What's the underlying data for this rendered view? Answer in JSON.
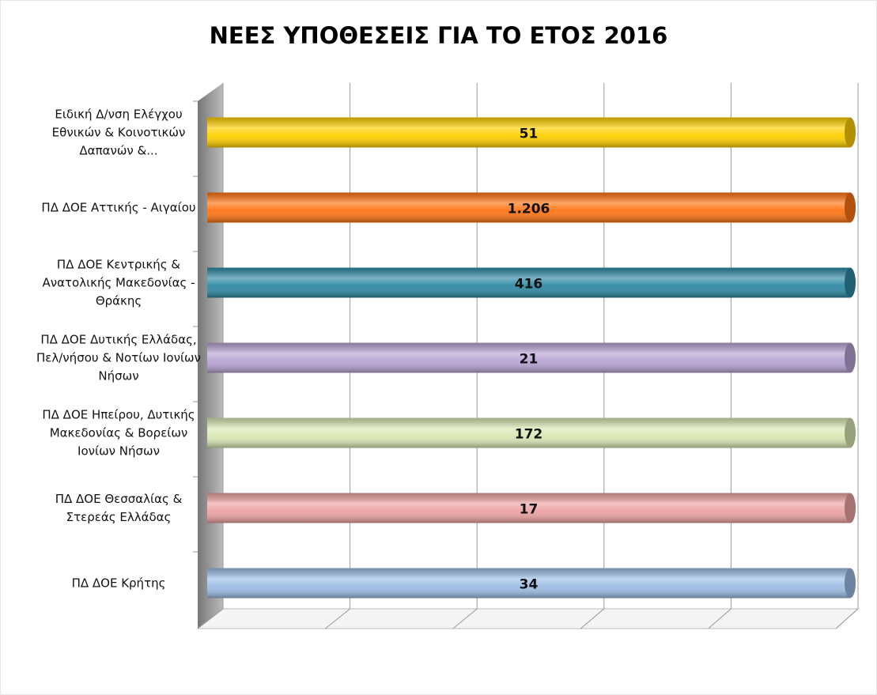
{
  "chart_data": {
    "type": "bar",
    "orientation": "horizontal",
    "normalize": true,
    "title": "ΝΕΕΣ ΥΠΟΘΕΣΕΙΣ ΓΙΑ ΤΟ ΕΤΟΣ 2016",
    "categories": [
      "Ειδική Δ/νση Ελέγχου Εθνικών & Κοινοτικών Δαπανών &...",
      "ΠΔ ΔΟΕ Αττικής - Αιγαίου",
      "ΠΔ ΔΟΕ Κεντρικής & Ανατολικής Μακεδονίας - Θράκης",
      "ΠΔ ΔΟΕ Δυτικής Ελλάδας, Πελ/νήσου & Νοτίων Ιονίων Νήσων",
      "ΠΔ ΔΟΕ Ηπείρου, Δυτικής Μακεδονίας & Βορείων Ιονίων Νήσων",
      "ΠΔ ΔΟΕ Θεσσαλίας & Στερεάς Ελλάδας",
      "ΠΔ ΔΟΕ Κρήτης"
    ],
    "values": [
      51,
      1206,
      416,
      21,
      172,
      17,
      34
    ],
    "value_labels": [
      "51",
      "1.206",
      "416",
      "21",
      "172",
      "17",
      "34"
    ],
    "colors": [
      "#ffd000",
      "#ff7413",
      "#2f8aa4",
      "#b7a4d4",
      "#d9e8b4",
      "#eda3a3",
      "#9dbde6"
    ],
    "xlim": [
      0,
      100
    ],
    "xticks": [
      0,
      20,
      40,
      60,
      80,
      100
    ],
    "grid": true
  }
}
